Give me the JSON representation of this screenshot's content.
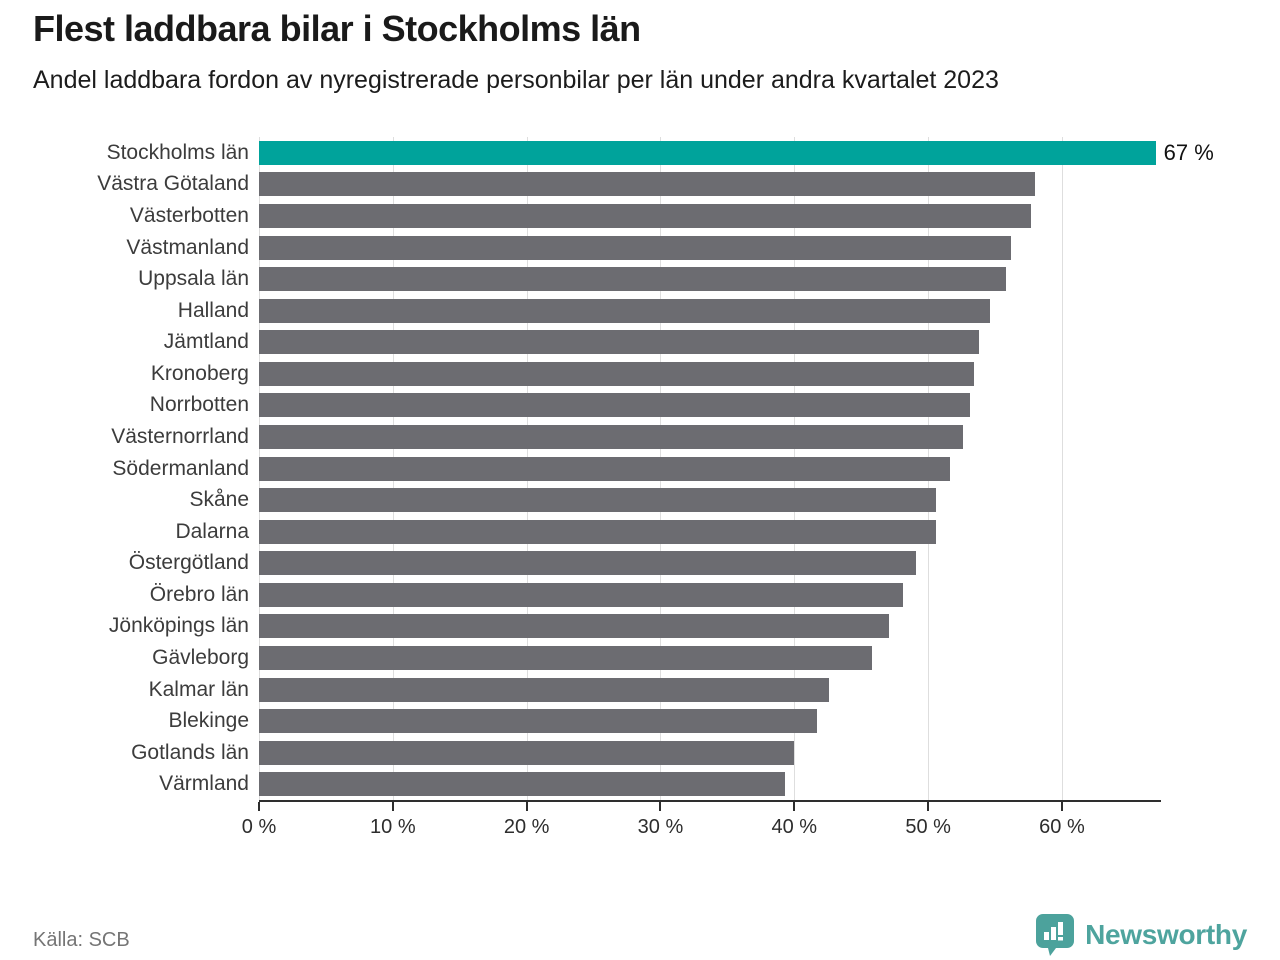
{
  "header": {
    "title": "Flest laddbara bilar i Stockholms län",
    "subtitle": "Andel laddbara fordon av nyregistrerade personbilar per län under andra kvartalet 2023"
  },
  "chart_data": {
    "type": "bar",
    "orientation": "horizontal",
    "title": "Flest laddbara bilar i Stockholms län",
    "subtitle": "Andel laddbara fordon av nyregistrerade personbilar per län under andra kvartalet 2023",
    "categories": [
      "Stockholms län",
      "Västra Götaland",
      "Västerbotten",
      "Västmanland",
      "Uppsala län",
      "Halland",
      "Jämtland",
      "Kronoberg",
      "Norrbotten",
      "Västernorrland",
      "Södermanland",
      "Skåne",
      "Dalarna",
      "Östergötland",
      "Örebro län",
      "Jönköpings län",
      "Gävleborg",
      "Kalmar län",
      "Blekinge",
      "Gotlands län",
      "Värmland"
    ],
    "values": [
      67,
      58,
      57.7,
      56.2,
      55.8,
      54.6,
      53.8,
      53.4,
      53.1,
      52.6,
      51.6,
      50.6,
      50.6,
      49.1,
      48.1,
      47.1,
      45.8,
      42.6,
      41.7,
      40.0,
      39.3
    ],
    "value_labels": {
      "0": "67 %"
    },
    "highlight_index": 0,
    "highlight_color": "#00a39b",
    "bar_color": "#6c6c71",
    "xlim": [
      0,
      67.4
    ],
    "xtick_values": [
      0,
      10,
      20,
      30,
      40,
      50,
      60
    ],
    "xtick_labels": [
      "0 %",
      "10 %",
      "20 %",
      "30 %",
      "40 %",
      "50 %",
      "60 %"
    ],
    "grid": true,
    "gridline_color": "#dedede",
    "legend": "none"
  },
  "footer": {
    "source": "Källa: SCB",
    "brand_name": "Newsworthy",
    "brand_color": "#4ea49e"
  }
}
